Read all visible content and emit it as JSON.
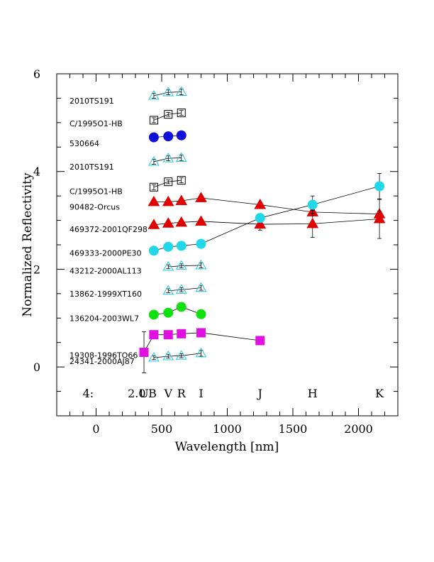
{
  "chart_data": {
    "type": "scatter",
    "xlabel": "Wavelength [nm]",
    "ylabel": "Normalized Reflectivity",
    "xlim": [
      -300,
      2300
    ],
    "ylim": [
      -1,
      6
    ],
    "xticks": [
      0,
      500,
      1000,
      1500,
      2000
    ],
    "yticks": [
      0,
      2,
      4,
      6
    ],
    "grid": false,
    "band_labels": [
      {
        "text": "4:",
        "x": -60
      },
      {
        "text": "2.0",
        "x": 310
      },
      {
        "text": "U",
        "x": 365
      },
      {
        "text": "B",
        "x": 430
      },
      {
        "text": "V",
        "x": 550
      },
      {
        "text": "R",
        "x": 650
      },
      {
        "text": "I",
        "x": 800
      },
      {
        "text": "J",
        "x": 1250
      },
      {
        "text": "H",
        "x": 1650
      },
      {
        "text": "K",
        "x": 2160
      }
    ],
    "series": [
      {
        "name": "2010TS191",
        "label_y": 5.45,
        "marker": "triangle-open",
        "color": "#22c8e0",
        "points": [
          {
            "x": 440,
            "y": 5.55,
            "err": 0.05
          },
          {
            "x": 550,
            "y": 5.62,
            "err": 0.05
          },
          {
            "x": 650,
            "y": 5.63,
            "err": 0.06
          }
        ]
      },
      {
        "name": "C/1995O1-HB",
        "label_y": 4.98,
        "marker": "square-open",
        "color": "#000000",
        "points": [
          {
            "x": 440,
            "y": 5.05,
            "err": 0.05
          },
          {
            "x": 550,
            "y": 5.17,
            "err": 0.04
          },
          {
            "x": 650,
            "y": 5.2,
            "err": 0.05
          }
        ]
      },
      {
        "name": "530664",
        "label_y": 4.58,
        "marker": "circle-filled",
        "color": "#1010d8",
        "points": [
          {
            "x": 440,
            "y": 4.7,
            "err": 0
          },
          {
            "x": 550,
            "y": 4.72,
            "err": 0
          },
          {
            "x": 650,
            "y": 4.74,
            "err": 0
          }
        ]
      },
      {
        "name": "2010TS191",
        "label_y": 4.1,
        "marker": "triangle-open",
        "color": "#22c8e0",
        "points": [
          {
            "x": 440,
            "y": 4.2,
            "err": 0.05
          },
          {
            "x": 550,
            "y": 4.27,
            "err": 0.05
          },
          {
            "x": 650,
            "y": 4.28,
            "err": 0.06
          }
        ]
      },
      {
        "name": "C/1995O1-HB",
        "label_y": 3.6,
        "marker": "square-open",
        "color": "#000000",
        "points": [
          {
            "x": 440,
            "y": 3.68,
            "err": 0.05
          },
          {
            "x": 550,
            "y": 3.79,
            "err": 0.04
          },
          {
            "x": 650,
            "y": 3.82,
            "err": 0.05
          }
        ]
      },
      {
        "name": "90482-Orcus",
        "label_y": 3.28,
        "marker": "triangle-filled",
        "color": "#e00000",
        "points": [
          {
            "x": 440,
            "y": 3.38,
            "err": 0.04
          },
          {
            "x": 550,
            "y": 3.38,
            "err": 0.03
          },
          {
            "x": 650,
            "y": 3.4,
            "err": 0.03
          },
          {
            "x": 800,
            "y": 3.46,
            "err": 0.04
          },
          {
            "x": 1250,
            "y": 3.32,
            "err": 0.05
          },
          {
            "x": 1650,
            "y": 3.17,
            "err": 0.05
          },
          {
            "x": 2160,
            "y": 3.13,
            "err": 0.06
          }
        ]
      },
      {
        "name": "469372-2001QF298",
        "label_y": 2.82,
        "marker": "triangle-filled",
        "color": "#e00000",
        "points": [
          {
            "x": 440,
            "y": 2.91,
            "err": 0.04
          },
          {
            "x": 550,
            "y": 2.94,
            "err": 0.04
          },
          {
            "x": 650,
            "y": 2.96,
            "err": 0.04
          },
          {
            "x": 800,
            "y": 2.98,
            "err": 0.05
          },
          {
            "x": 1250,
            "y": 2.92,
            "err": 0.12
          },
          {
            "x": 1650,
            "y": 2.93,
            "err": 0.28
          },
          {
            "x": 2160,
            "y": 3.03,
            "err": 0.4
          }
        ]
      },
      {
        "name": "469333-2000PE30",
        "label_y": 2.33,
        "marker": "circle-filled",
        "color": "#22d8e8",
        "points": [
          {
            "x": 440,
            "y": 2.38,
            "err": 0.06
          },
          {
            "x": 550,
            "y": 2.46,
            "err": 0.04
          },
          {
            "x": 650,
            "y": 2.48,
            "err": 0.08
          },
          {
            "x": 800,
            "y": 2.52,
            "err": 0.07
          },
          {
            "x": 1250,
            "y": 3.05,
            "err": 0.06
          },
          {
            "x": 1650,
            "y": 3.32,
            "err": 0.18
          },
          {
            "x": 2160,
            "y": 3.7,
            "err": 0.26
          }
        ]
      },
      {
        "name": "43212-2000AL113",
        "label_y": 1.97,
        "marker": "triangle-open",
        "color": "#22c8e0",
        "points": [
          {
            "x": 550,
            "y": 2.05,
            "err": 0.04
          },
          {
            "x": 650,
            "y": 2.07,
            "err": 0.04
          },
          {
            "x": 800,
            "y": 2.08,
            "err": 0.05
          }
        ]
      },
      {
        "name": "13862-1999XT160",
        "label_y": 1.5,
        "marker": "triangle-open",
        "color": "#22c8e0",
        "points": [
          {
            "x": 550,
            "y": 1.56,
            "err": 0.04
          },
          {
            "x": 650,
            "y": 1.58,
            "err": 0.04
          },
          {
            "x": 800,
            "y": 1.62,
            "err": 0.05
          }
        ]
      },
      {
        "name": "136204-2003WL7",
        "label_y": 1.0,
        "marker": "circle-filled",
        "color": "#10e010",
        "points": [
          {
            "x": 440,
            "y": 1.07,
            "err": 0.05
          },
          {
            "x": 550,
            "y": 1.11,
            "err": 0.04
          },
          {
            "x": 650,
            "y": 1.23,
            "err": 0.06
          },
          {
            "x": 800,
            "y": 1.08,
            "err": 0.06
          }
        ]
      },
      {
        "name": "19308-1996TO66",
        "label_y": 0.24,
        "marker": "square-filled",
        "color": "#e010e0",
        "points": [
          {
            "x": 365,
            "y": 0.3,
            "err": 0.42
          },
          {
            "x": 440,
            "y": 0.66,
            "err": 0.05
          },
          {
            "x": 550,
            "y": 0.66,
            "err": 0.04
          },
          {
            "x": 650,
            "y": 0.68,
            "err": 0.05
          },
          {
            "x": 800,
            "y": 0.7,
            "err": 0.06
          },
          {
            "x": 1250,
            "y": 0.54,
            "err": 0.06
          }
        ]
      },
      {
        "name": "24341-2000AJ87",
        "label_y": 0.12,
        "marker": "triangle-open",
        "color": "#22c8e0",
        "points": [
          {
            "x": 440,
            "y": 0.19,
            "err": 0.04
          },
          {
            "x": 550,
            "y": 0.22,
            "err": 0.04
          },
          {
            "x": 650,
            "y": 0.23,
            "err": 0.04
          },
          {
            "x": 800,
            "y": 0.28,
            "err": 0.06
          }
        ]
      }
    ]
  }
}
